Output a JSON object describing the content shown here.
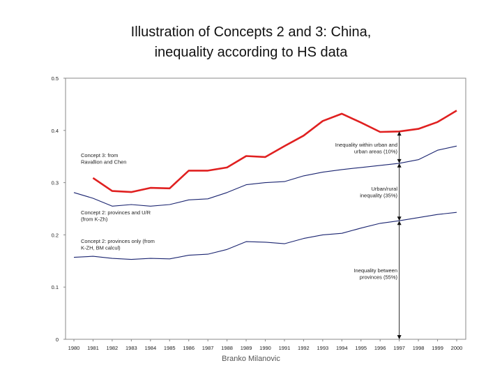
{
  "title_line1": "Illustration of Concepts 2 and 3: China,",
  "title_line2": "inequality according to HS data",
  "footer": "Branko Milanovic",
  "chart_data": {
    "type": "line",
    "x": [
      1980,
      1981,
      1982,
      1983,
      1984,
      1985,
      1986,
      1987,
      1988,
      1989,
      1990,
      1991,
      1992,
      1993,
      1994,
      1995,
      1996,
      1997,
      1998,
      1999,
      2000
    ],
    "xlim": [
      1980,
      2000
    ],
    "ylim": [
      0,
      0.5
    ],
    "y_ticks": [
      "0",
      "0.1",
      "0.2",
      "0.3",
      "0.4",
      "0.5"
    ],
    "grid": false,
    "series": [
      {
        "color": "#e02020",
        "values": [
          null,
          0.309,
          0.284,
          0.282,
          0.29,
          0.289,
          0.323,
          0.323,
          0.329,
          0.351,
          0.349,
          0.37,
          0.39,
          0.418,
          0.432,
          0.415,
          0.397,
          0.398,
          0.403,
          0.416,
          0.438
        ]
      },
      {
        "color": "#1a2470",
        "values": [
          0.281,
          0.27,
          0.255,
          0.258,
          0.255,
          0.258,
          0.267,
          0.269,
          0.281,
          0.296,
          0.3,
          0.302,
          0.313,
          0.32,
          0.325,
          0.329,
          0.333,
          0.337,
          0.344,
          0.362,
          0.37
        ]
      },
      {
        "color": "#1a2470",
        "values": [
          0.157,
          0.159,
          0.155,
          0.153,
          0.155,
          0.154,
          0.161,
          0.163,
          0.172,
          0.187,
          0.186,
          0.183,
          0.193,
          0.2,
          0.203,
          0.213,
          0.222,
          0.227,
          0.233,
          0.239,
          0.243
        ]
      }
    ],
    "annotations": [
      {
        "lines": [
          "Concept 3: from",
          "Ravallion and Chen"
        ]
      },
      {
        "lines": [
          "Concept 2: provinces and U/R",
          "(from K-Zh)"
        ]
      },
      {
        "lines": [
          "Concept 2: provinces only (from",
          "K-ZH, BM calcul)"
        ]
      },
      {
        "lines": [
          "Inequality within urban and",
          "urban areas (10%)"
        ]
      },
      {
        "lines": [
          "Urban/rural",
          "inequality (35%)"
        ]
      },
      {
        "lines": [
          "Inequality between",
          "provinces (55%)"
        ]
      }
    ]
  }
}
